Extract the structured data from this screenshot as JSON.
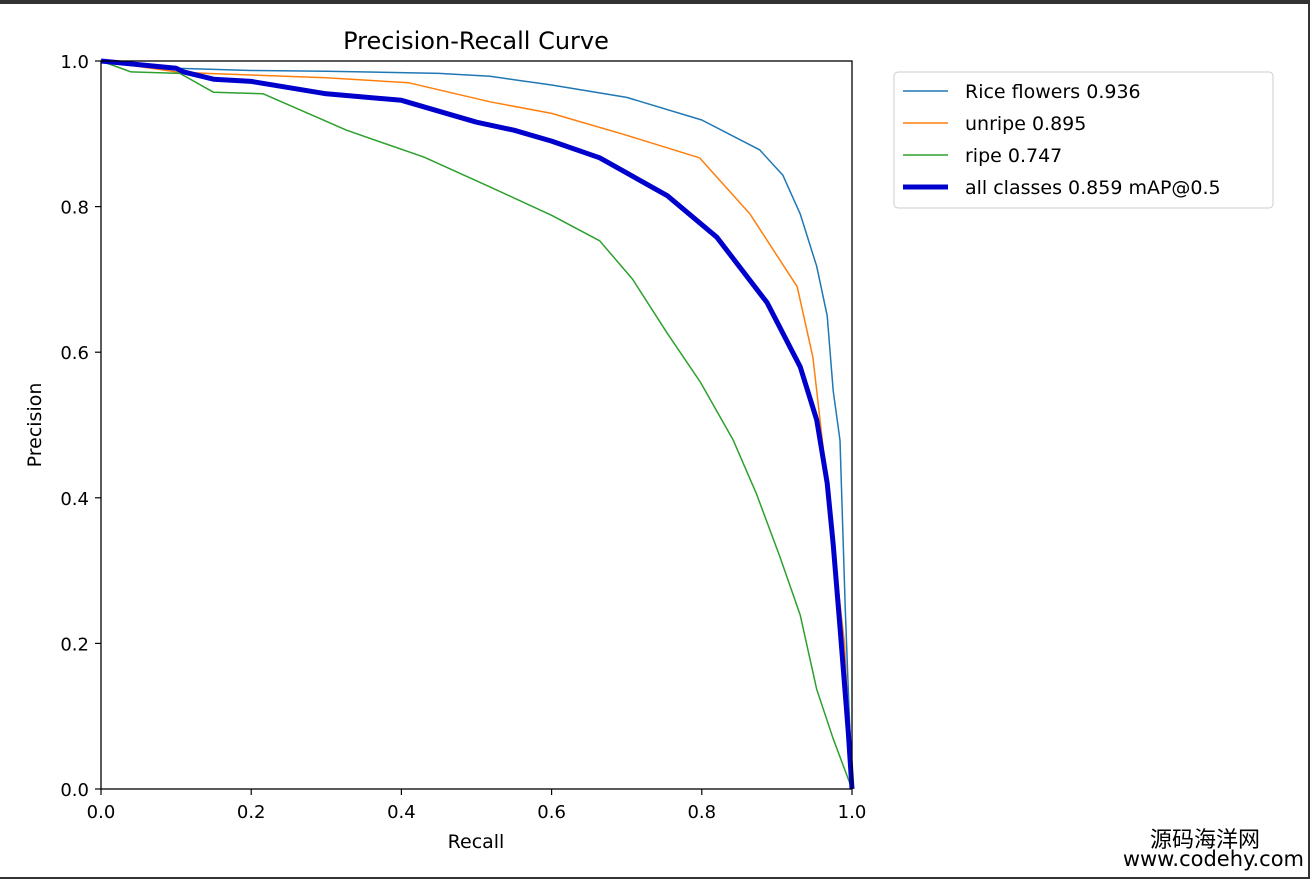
{
  "chart_data": {
    "type": "line",
    "title": "Precision-Recall Curve",
    "xlabel": "Recall",
    "ylabel": "Precision",
    "xlim": [
      0,
      1
    ],
    "ylim": [
      0,
      1
    ],
    "xticks": [
      "0.0",
      "0.2",
      "0.4",
      "0.6",
      "0.8",
      "1.0"
    ],
    "yticks": [
      "0.0",
      "0.2",
      "0.4",
      "0.6",
      "0.8",
      "1.0"
    ],
    "grid": false,
    "legend_position": "outside-top-right",
    "series": [
      {
        "name": "Rice flowers 0.936",
        "color": "#1f77b4",
        "width": 1.5,
        "x": [
          0,
          0.1,
          0.2,
          0.3,
          0.45,
          0.518,
          0.6,
          0.7,
          0.8,
          0.877,
          0.908,
          0.931,
          0.953,
          0.967,
          0.975,
          0.984,
          0.991,
          1.0
        ],
        "y": [
          1.0,
          0.99,
          0.987,
          0.986,
          0.983,
          0.979,
          0.967,
          0.95,
          0.919,
          0.878,
          0.843,
          0.79,
          0.718,
          0.65,
          0.547,
          0.479,
          0.25,
          0.0
        ]
      },
      {
        "name": "unripe 0.895",
        "color": "#ff7f0e",
        "width": 1.5,
        "x": [
          0,
          0.1,
          0.14,
          0.3,
          0.41,
          0.518,
          0.6,
          0.7,
          0.797,
          0.864,
          0.927,
          0.948,
          0.967,
          0.975,
          0.99,
          1.0
        ],
        "y": [
          1.0,
          0.985,
          0.983,
          0.977,
          0.97,
          0.944,
          0.928,
          0.898,
          0.867,
          0.79,
          0.69,
          0.593,
          0.42,
          0.336,
          0.2,
          0.0
        ]
      },
      {
        "name": "ripe 0.747",
        "color": "#2ca02c",
        "width": 1.5,
        "x": [
          0,
          0.04,
          0.105,
          0.15,
          0.216,
          0.327,
          0.43,
          0.518,
          0.6,
          0.664,
          0.708,
          0.754,
          0.798,
          0.842,
          0.873,
          0.904,
          0.931,
          0.953,
          0.975,
          1.0
        ],
        "y": [
          1.0,
          0.985,
          0.983,
          0.957,
          0.955,
          0.905,
          0.868,
          0.827,
          0.788,
          0.753,
          0.7,
          0.626,
          0.559,
          0.479,
          0.405,
          0.319,
          0.239,
          0.137,
          0.069,
          0.0
        ]
      },
      {
        "name": "all classes 0.859 mAP@0.5",
        "color": "#0000cc",
        "width": 5,
        "x": [
          0,
          0.1,
          0.11,
          0.15,
          0.2,
          0.3,
          0.4,
          0.5,
          0.55,
          0.6,
          0.664,
          0.754,
          0.82,
          0.887,
          0.931,
          0.953,
          0.967,
          0.975,
          0.984,
          0.995,
          1.0
        ],
        "y": [
          1.0,
          0.99,
          0.985,
          0.975,
          0.972,
          0.955,
          0.946,
          0.916,
          0.905,
          0.89,
          0.867,
          0.815,
          0.758,
          0.668,
          0.58,
          0.507,
          0.42,
          0.336,
          0.222,
          0.08,
          0.0
        ]
      }
    ]
  },
  "watermark": {
    "line1": "源码海洋网",
    "line2": "www.codehy.com"
  }
}
